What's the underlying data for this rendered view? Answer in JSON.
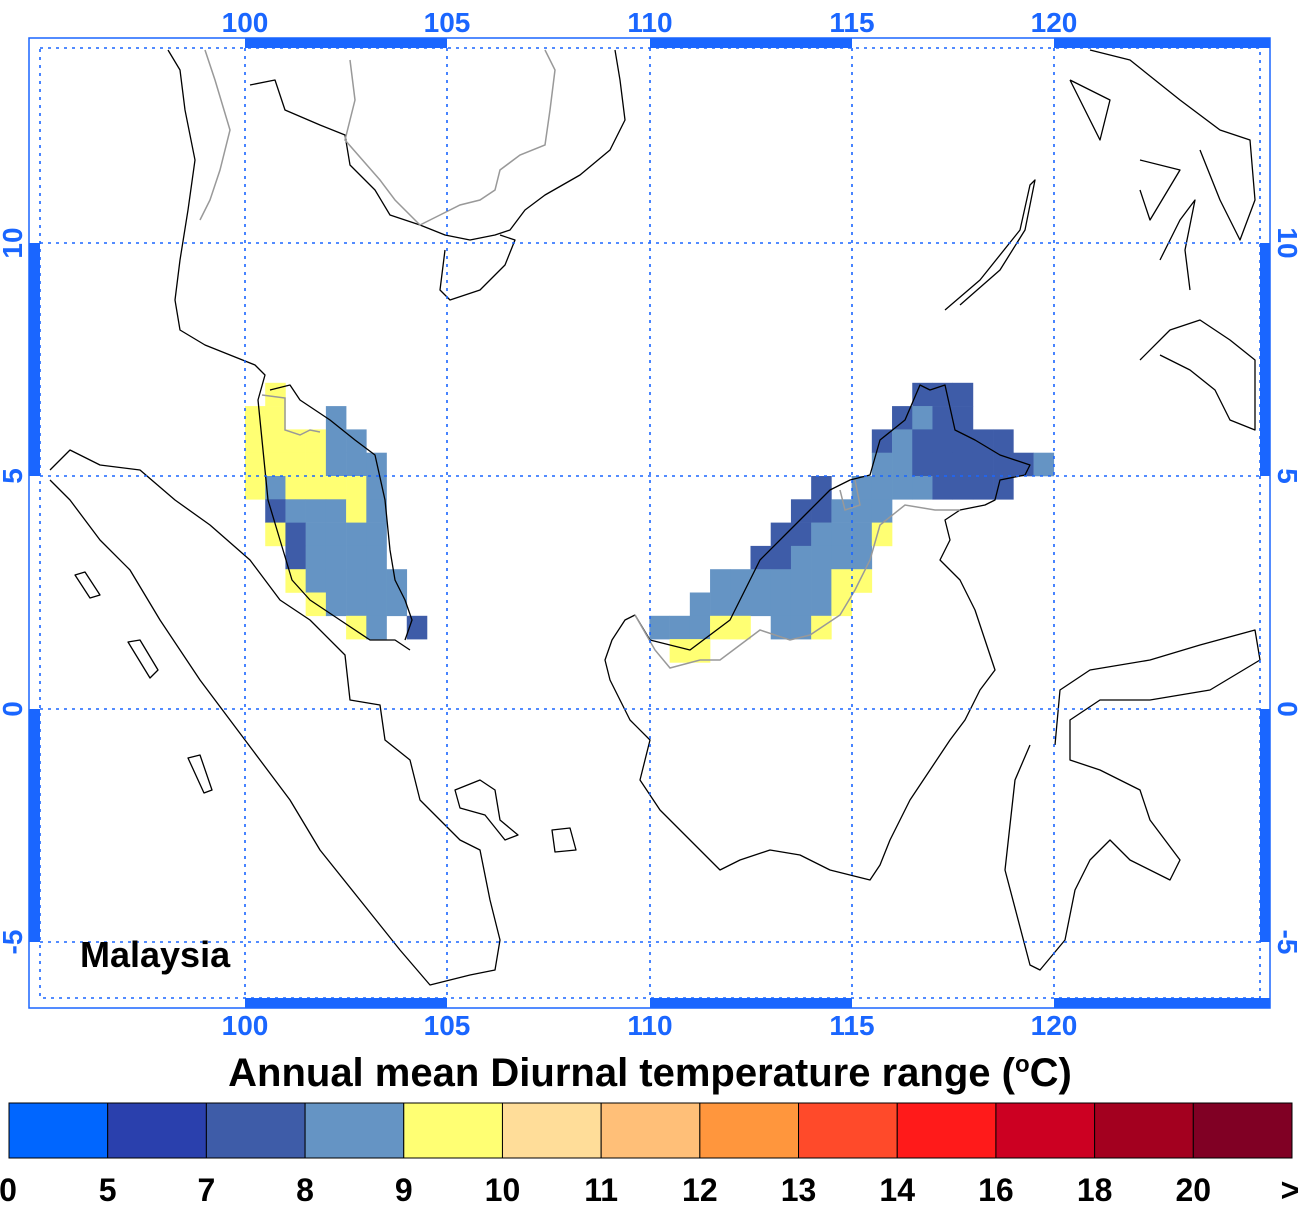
{
  "map": {
    "region_label": "Malaysia",
    "title": "Annual mean Diurnal temperature range (°C)",
    "title_main": "Annual mean Diurnal temperature range (",
    "title_unit_sup": "o",
    "title_unit_tail": "C)",
    "lon_labels": [
      "100",
      "105",
      "110",
      "115",
      "120"
    ],
    "lat_labels": [
      "10",
      "5",
      "0",
      "-5"
    ],
    "axis_color": "#1a66ff"
  },
  "chart_data": {
    "type": "heatmap",
    "title": "Annual mean Diurnal temperature range (°C)",
    "lon_range": [
      94.5,
      125
    ],
    "lat_range": [
      -6.5,
      14.5
    ],
    "lon_ticks": [
      100,
      105,
      110,
      115,
      120
    ],
    "lat_ticks": [
      10,
      5,
      0,
      -5
    ],
    "grid": true,
    "cell_resolution_deg": 0.5,
    "origin_lon": 100,
    "origin_lat_top": 7,
    "legend_codes": {
      "D": "7-8",
      "B": "8-9",
      "Y": "9-10"
    },
    "rows": [
      ".Y.......................DDD....",
      "YY..B...................DBDD....",
      "YYYYBB.................DBDDDDD..",
      "YYYYBBB................BBDDDDDDB",
      "YBYYYYB.............D.BBBBDDDD..",
      ".DBBBYB............DDBBB........",
      ".YDBBBB...........DDBBBY........",
      "..DBBBB..........DDBBBB.........",
      "..YBBBBB.......BBBBBBYY.........",
      "...YBBBB......BBBBBBBY..........",
      ".....YB.D...BBBYY.BBY...........",
      ".............YY................."
    ],
    "row_col_offset_note": "columns 0-9 start at lon 100; columns 10-31 start at lon 109",
    "colorbar": {
      "labels": [
        "0",
        "5",
        "7",
        "8",
        "9",
        "10",
        "11",
        "12",
        "13",
        "14",
        "16",
        "18",
        "20",
        ">"
      ],
      "colors": [
        "#0066ff",
        "#2a40ad",
        "#3e5ca8",
        "#6594c4",
        "#ffff73",
        "#ffdd99",
        "#ffbf78",
        "#ff963d",
        "#ff4a2a",
        "#ff1a1a",
        "#cc0022",
        "#a3001f",
        "#800024"
      ]
    }
  }
}
